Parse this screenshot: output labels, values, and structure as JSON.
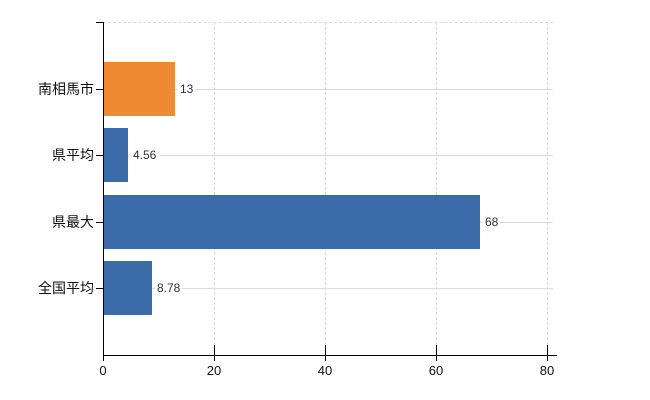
{
  "chart_data": {
    "type": "bar",
    "orientation": "horizontal",
    "title": "",
    "categories": [
      "南相馬市",
      "県平均",
      "県最大",
      "全国平均"
    ],
    "values": [
      13,
      4.56,
      68,
      8.78
    ],
    "value_labels": [
      "13",
      "4.56",
      "68",
      "8.78"
    ],
    "bar_colors": [
      "#ee8a31",
      "#3b6ca9",
      "#3b6ca9",
      "#3b6ca9"
    ],
    "x_ticks": [
      0,
      20,
      40,
      60,
      80
    ],
    "x_tick_labels": [
      "0",
      "20",
      "40",
      "60",
      "80"
    ],
    "xlim": [
      0,
      80
    ],
    "xlabel": "",
    "ylabel": "",
    "grid": true,
    "legend": "none",
    "colors": {
      "background": "#ffffff",
      "axis": "#000000",
      "gridline": "#d9d9d9",
      "highlight_bar": "#ee8a31",
      "default_bar": "#3b6ca9",
      "value_label_text": "#333333",
      "tick_label_text": "#111111"
    }
  }
}
